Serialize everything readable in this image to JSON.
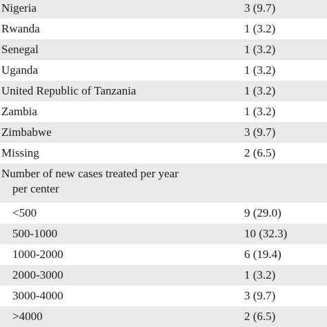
{
  "rows": [
    {
      "label": "Nigeria",
      "value": "3 (9.7)"
    },
    {
      "label": "Rwanda",
      "value": "1 (3.2)"
    },
    {
      "label": "Senegal",
      "value": "1 (3.2)"
    },
    {
      "label": "Uganda",
      "value": "1 (3.2)"
    },
    {
      "label": "United Republic of Tanzania",
      "value": "1 (3.2)"
    },
    {
      "label": "Zambia",
      "value": "1 (3.2)"
    },
    {
      "label": "Zimbabwe",
      "value": "3 (9.7)"
    },
    {
      "label": "Missing",
      "value": "2 (6.5)"
    },
    {
      "label_line1": "Number of new cases treated per year",
      "label_line2": "per center",
      "value": ""
    },
    {
      "label": "<500",
      "value": "9 (29.0)"
    },
    {
      "label": "500-1000",
      "value": "10 (32.3)"
    },
    {
      "label": "1000-2000",
      "value": "6 (19.4)"
    },
    {
      "label": "2000-3000",
      "value": "1 (3.2)"
    },
    {
      "label": "3000-4000",
      "value": "3 (9.7)"
    },
    {
      "label": ">4000",
      "value": "2 (6.5)"
    }
  ]
}
